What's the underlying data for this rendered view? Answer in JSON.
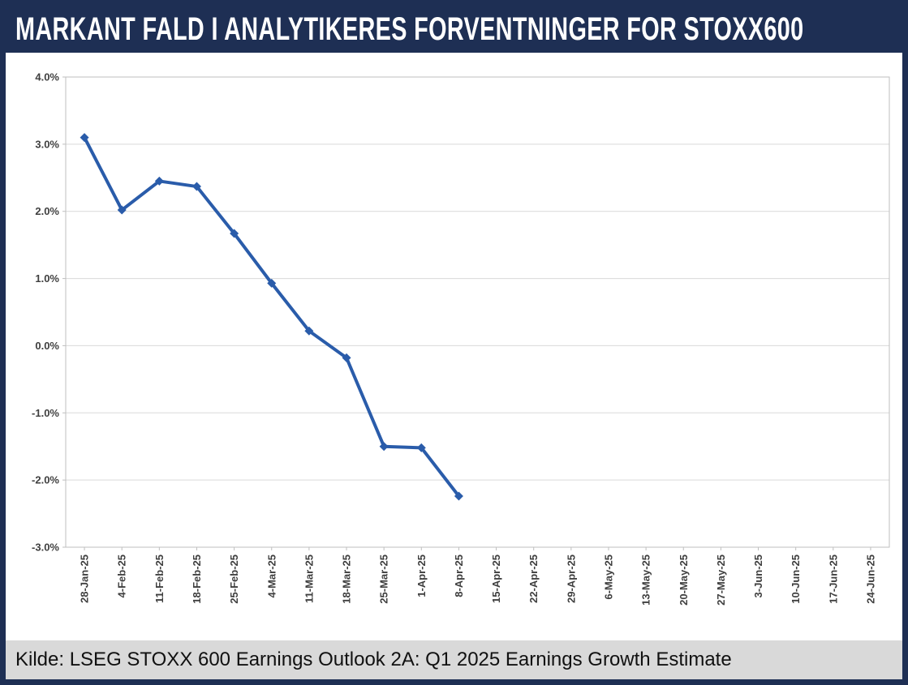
{
  "header": {
    "title": "MARKANT FALD I ANALYTIKERES FORVENTNINGER FOR STOXX600"
  },
  "footer": {
    "source": "Kilde: LSEG STOXX 600 Earnings Outlook 2A: Q1 2025 Earnings Growth Estimate"
  },
  "colors": {
    "navy": "#1E2F54",
    "line": "#2A5CAA",
    "grid": "#D9D9D9",
    "plot_border": "#BFBFBF",
    "axis_text": "#3F3F3F",
    "footer_bg": "#D9D9D9"
  },
  "chart_data": {
    "type": "line",
    "title": "MARKANT FALD I ANALYTIKERES FORVENTNINGER FOR STOXX600",
    "xlabel": "",
    "ylabel": "",
    "ylim": [
      -3.0,
      4.0
    ],
    "grid": "horizontal",
    "legend": "none",
    "marker": "diamond",
    "categories": [
      "28-Jan-25",
      "4-Feb-25",
      "11-Feb-25",
      "18-Feb-25",
      "25-Feb-25",
      "4-Mar-25",
      "11-Mar-25",
      "18-Mar-25",
      "25-Mar-25",
      "1-Apr-25",
      "8-Apr-25",
      "15-Apr-25",
      "22-Apr-25",
      "29-Apr-25",
      "6-May-25",
      "13-May-25",
      "20-May-25",
      "27-May-25",
      "3-Jun-25",
      "10-Jun-25",
      "17-Jun-25",
      "24-Jun-25"
    ],
    "values": [
      3.1,
      2.02,
      2.45,
      2.37,
      1.67,
      0.93,
      0.22,
      -0.18,
      -1.5,
      -1.52,
      -2.24,
      null,
      null,
      null,
      null,
      null,
      null,
      null,
      null,
      null,
      null,
      null
    ],
    "yticks": [
      {
        "value": 4.0,
        "label": "4.0%"
      },
      {
        "value": 3.0,
        "label": "3.0%"
      },
      {
        "value": 2.0,
        "label": "2.0%"
      },
      {
        "value": 1.0,
        "label": "1.0%"
      },
      {
        "value": 0.0,
        "label": "0.0%"
      },
      {
        "value": -1.0,
        "label": "-1.0%"
      },
      {
        "value": -2.0,
        "label": "-2.0%"
      },
      {
        "value": -3.0,
        "label": "-3.0%"
      }
    ]
  }
}
